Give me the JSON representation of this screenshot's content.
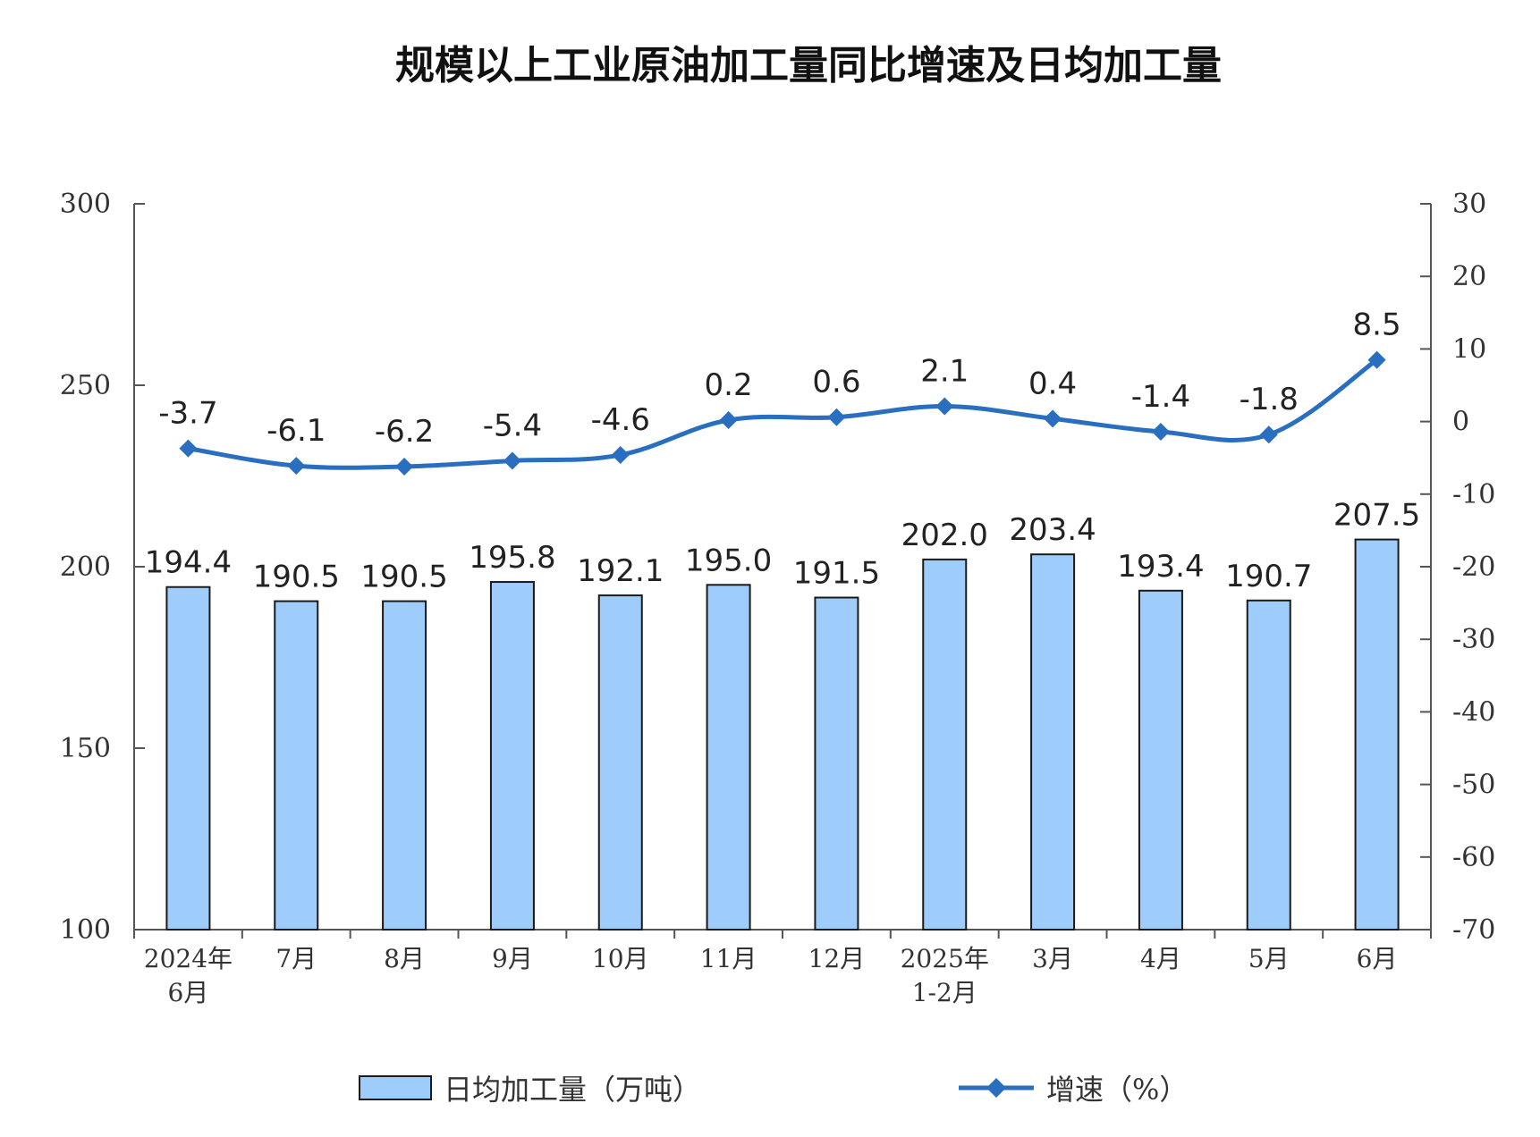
{
  "chart_data": {
    "type": "bar",
    "title": "规模以上工业原油加工量同比增速及日均加工量",
    "categories": [
      "2024年\n6月",
      "7月",
      "8月",
      "9月",
      "10月",
      "11月",
      "12月",
      "2025年\n1-2月",
      "3月",
      "4月",
      "5月",
      "6月"
    ],
    "series": [
      {
        "name": "日均加工量（万吨）",
        "type": "bar",
        "axis": "left",
        "values": [
          194.4,
          190.5,
          190.5,
          195.8,
          192.1,
          195.0,
          191.5,
          202.0,
          203.4,
          193.4,
          190.7,
          207.5
        ],
        "labels": [
          "194.4",
          "190.5",
          "190.5",
          "195.8",
          "192.1",
          "195.0",
          "191.5",
          "202.0",
          "203.4",
          "193.4",
          "190.7",
          "207.5"
        ]
      },
      {
        "name": "增速（%）",
        "type": "line",
        "axis": "right",
        "values": [
          -3.7,
          -6.1,
          -6.2,
          -5.4,
          -4.6,
          0.2,
          0.6,
          2.1,
          0.4,
          -1.4,
          -1.8,
          8.5
        ],
        "labels": [
          "-3.7",
          "-6.1",
          "-6.2",
          "-5.4",
          "-4.6",
          "0.2",
          "0.6",
          "2.1",
          "0.4",
          "-1.4",
          "-1.8",
          "8.5"
        ]
      }
    ],
    "y_left": {
      "min": 100,
      "max": 300,
      "ticks": [
        "100",
        "150",
        "200",
        "250",
        "300"
      ]
    },
    "y_right": {
      "min": -70,
      "max": 30,
      "ticks": [
        "-70",
        "-60",
        "-50",
        "-40",
        "-30",
        "-20",
        "-10",
        "0",
        "10",
        "20",
        "30"
      ]
    },
    "grid": false,
    "legend_position": "bottom-center"
  },
  "colors": {
    "bar_fill": "#9fcdfb",
    "bar_stroke": "#1a1a1a",
    "line": "#2a6fbf",
    "axis": "#555555"
  }
}
